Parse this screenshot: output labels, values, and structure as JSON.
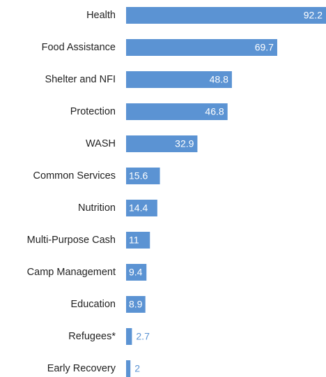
{
  "chart_data": {
    "type": "bar",
    "orientation": "horizontal",
    "categories": [
      "Health",
      "Food Assistance",
      "Shelter and NFI",
      "Protection",
      "WASH",
      "Common Services",
      "Nutrition",
      "Multi-Purpose Cash",
      "Camp Management",
      "Education",
      "Refugees*",
      "Early Recovery"
    ],
    "values": [
      92.2,
      69.7,
      48.8,
      46.8,
      32.9,
      15.6,
      14.4,
      11,
      9.4,
      8.9,
      2.7,
      2
    ],
    "color": "#5b93d3"
  }
}
